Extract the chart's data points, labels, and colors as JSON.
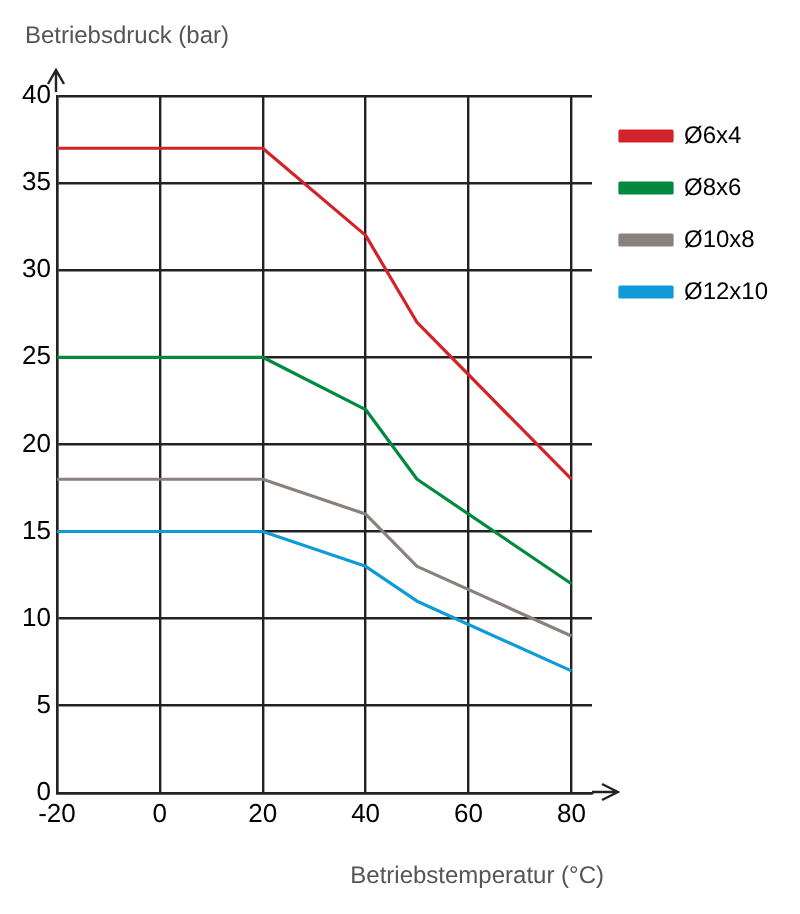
{
  "chart_data": {
    "type": "line",
    "xlabel": "Betriebstemperatur (°C)",
    "ylabel": "Betriebsdruck (bar)",
    "x": [
      -20,
      20,
      40,
      50,
      80
    ],
    "series": [
      {
        "name": "Ø6x4",
        "color": "#d2232a",
        "values": [
          37,
          37,
          32,
          27,
          18
        ]
      },
      {
        "name": "Ø8x6",
        "color": "#00893f",
        "values": [
          25,
          25,
          22,
          18,
          12
        ]
      },
      {
        "name": "Ø10x8",
        "color": "#8a817c",
        "values": [
          18,
          18,
          16,
          13,
          9
        ]
      },
      {
        "name": "Ø12x10",
        "color": "#109ad7",
        "values": [
          15,
          15,
          13,
          11,
          7
        ]
      }
    ],
    "xlim": [
      -20,
      84
    ],
    "xticks": [
      -20,
      0,
      20,
      40,
      60,
      80
    ],
    "ylim": [
      0,
      40
    ],
    "yticks": [
      0,
      5,
      10,
      15,
      20,
      25,
      30,
      35,
      40
    ],
    "grid": true,
    "legend": "right",
    "marker": "none",
    "line_style": "solid"
  }
}
